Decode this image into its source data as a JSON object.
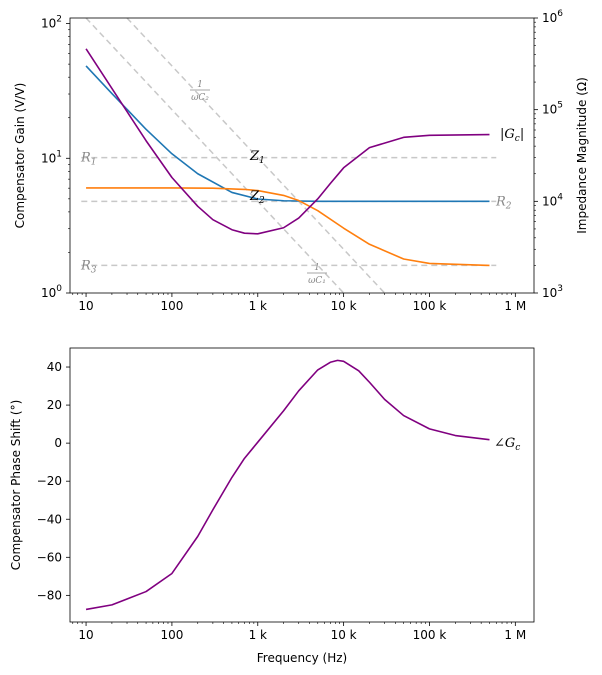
{
  "chart_data": [
    {
      "type": "line",
      "xscale": "log",
      "xlim": [
        6.5,
        1650000
      ],
      "xticks": [
        10,
        100,
        1000,
        10000,
        100000,
        1000000
      ],
      "xtick_labels": [
        "10",
        "100",
        "1 k",
        "10 k",
        "100 k",
        "1 M"
      ],
      "ylabel": "Compensator Gain (V/V)",
      "yscale": "log",
      "ylim": [
        1,
        110
      ],
      "yticks": [
        1,
        10,
        100
      ],
      "ytick_labels": [
        "10",
        "10",
        "10"
      ],
      "ytick_exponents": [
        "0",
        "1",
        "2"
      ],
      "ylabel2": "Impedance Magnitude (Ω)",
      "y2scale": "log",
      "y2lim": [
        1000,
        1000000
      ],
      "y2ticks": [
        1000,
        10000,
        100000,
        1000000
      ],
      "y2tick_labels": [
        "10",
        "10",
        "10",
        "10"
      ],
      "y2tick_exponents": [
        "3",
        "4",
        "5",
        "6"
      ],
      "series": [
        {
          "name": "Z1",
          "label_main": "Z",
          "label_sub": "1",
          "color": "#1f77b4",
          "axis": "right",
          "x": [
            10,
            20,
            50,
            100,
            200,
            500,
            1000,
            2000,
            5000,
            10000,
            100000,
            500000
          ],
          "y": [
            300000,
            150000,
            61000,
            33000,
            20000,
            12500,
            10600,
            10150,
            10000,
            10000,
            10000,
            10000
          ]
        },
        {
          "name": "Z2",
          "label_main": "Z",
          "label_sub": "2",
          "color": "#ff7f0e",
          "axis": "right",
          "x": [
            10,
            100,
            300,
            700,
            1000,
            2000,
            3000,
            5000,
            10000,
            20000,
            50000,
            100000,
            500000
          ],
          "y": [
            14000,
            14000,
            13900,
            13500,
            13100,
            11600,
            10200,
            7900,
            5100,
            3400,
            2350,
            2100,
            2000
          ]
        },
        {
          "name": "|Gc|",
          "label_main": "|G",
          "label_sub": "c",
          "label_end": "|",
          "color": "#800080",
          "axis": "left",
          "x": [
            10,
            20,
            50,
            100,
            200,
            300,
            500,
            700,
            1000,
            2000,
            3000,
            5000,
            7000,
            10000,
            20000,
            50000,
            100000,
            500000
          ],
          "y": [
            65,
            33,
            13.5,
            7.2,
            4.4,
            3.5,
            2.95,
            2.78,
            2.75,
            3.05,
            3.6,
            5.0,
            6.5,
            8.5,
            12.0,
            14.3,
            14.8,
            15.0
          ]
        }
      ],
      "reference_lines": [
        {
          "name": "R1",
          "label_main": "R",
          "label_sub": "1",
          "axis": "right",
          "value": 30000
        },
        {
          "name": "R2",
          "label_main": "R",
          "label_sub": "2",
          "axis": "right",
          "value": 10000
        },
        {
          "name": "R3",
          "label_main": "R",
          "label_sub": "3",
          "axis": "right",
          "value": 2000
        },
        {
          "name": "1/(ωC2)",
          "label_num": "1",
          "label_den": "ωC₂",
          "axis": "right",
          "x": [
            30,
            30000
          ],
          "y": [
            1000000,
            1000
          ]
        },
        {
          "name": "1/(ωC1)",
          "label_num": "1",
          "label_den": "ωC₁",
          "axis": "right",
          "x": [
            10,
            10000
          ],
          "y": [
            1000000,
            1000
          ]
        }
      ]
    },
    {
      "type": "line",
      "xscale": "log",
      "xlim": [
        6.5,
        1650000
      ],
      "xticks": [
        10,
        100,
        1000,
        10000,
        100000,
        1000000
      ],
      "xtick_labels": [
        "10",
        "100",
        "1 k",
        "10 k",
        "100 k",
        "1 M"
      ],
      "xlabel": "Frequency (Hz)",
      "ylabel": "Compensator Phase Shift (°)",
      "ylim": [
        -94,
        50
      ],
      "yticks": [
        -80,
        -60,
        -40,
        -20,
        0,
        20,
        40
      ],
      "ytick_labels": [
        "−80",
        "−60",
        "−40",
        "−20",
        "0",
        "20",
        "40"
      ],
      "series": [
        {
          "name": "∠Gc",
          "label_main": "∠G",
          "label_sub": "c",
          "color": "#800080",
          "x": [
            10,
            20,
            50,
            100,
            200,
            300,
            500,
            700,
            1000,
            2000,
            3000,
            5000,
            7000,
            8500,
            10000,
            15000,
            20000,
            30000,
            50000,
            100000,
            200000,
            500000
          ],
          "y": [
            -87.4,
            -85.0,
            -78.0,
            -68.5,
            -49.0,
            -35.0,
            -18.0,
            -8.0,
            0.5,
            17.0,
            27.5,
            38.5,
            42.5,
            43.5,
            43.0,
            38.0,
            32.0,
            23.0,
            14.5,
            7.5,
            4.0,
            1.8
          ]
        }
      ]
    }
  ]
}
